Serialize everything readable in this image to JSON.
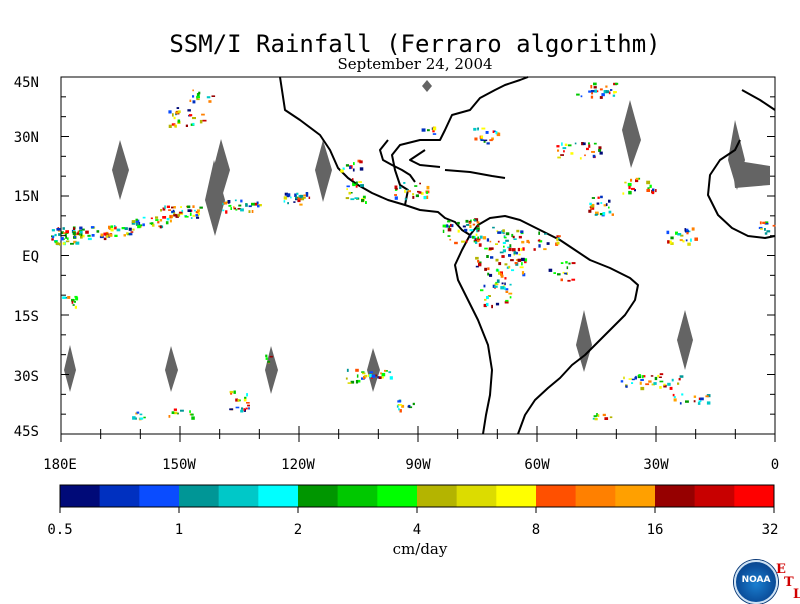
{
  "map": {
    "title": "SSM/I Rainfall (Ferraro algorithm)",
    "date": "September 24, 2004",
    "lat_labels": [
      "45N",
      "30N",
      "15N",
      "EQ",
      "15S",
      "30S",
      "45S"
    ],
    "lon_labels": [
      "180E",
      "150W",
      "120W",
      "90W",
      "60W",
      "30W",
      "0"
    ],
    "lat_range": [
      -45,
      45
    ],
    "lon_range": [
      -180,
      0
    ],
    "land_mask_color": "#646464",
    "coastline_color": "#000000"
  },
  "colorbar": {
    "unit": "cm/day",
    "tick_labels": [
      "0.5",
      "1",
      "2",
      "4",
      "8",
      "16",
      "32"
    ],
    "colors": [
      "#000a78",
      "#0030c0",
      "#0a4cff",
      "#009696",
      "#00c8c8",
      "#00ffff",
      "#009600",
      "#00c800",
      "#00ff00",
      "#b4b400",
      "#dcdc00",
      "#ffff00",
      "#ff5000",
      "#ff8000",
      "#ffa000",
      "#960000",
      "#c80000",
      "#ff0000"
    ]
  },
  "logo": {
    "name": "NOAA",
    "letters": [
      "E",
      "T",
      "L"
    ]
  }
}
